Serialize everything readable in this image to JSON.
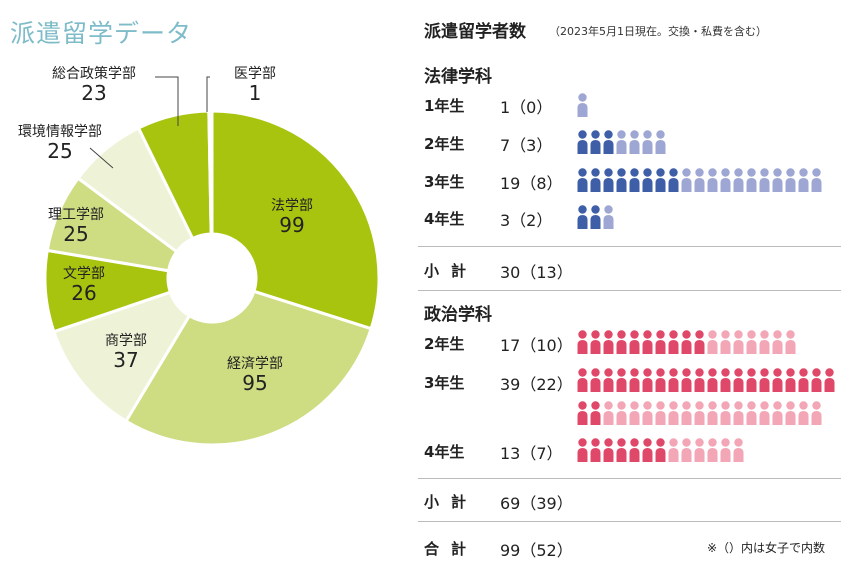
{
  "left": {
    "title": "派遣留学データ"
  },
  "chart_data": [
    {
      "type": "pie",
      "slices": [
        {
          "name": "法学部",
          "value": 99,
          "color": "#a8c40f"
        },
        {
          "name": "経済学部",
          "value": 95,
          "color": "#cedc82"
        },
        {
          "name": "商学部",
          "value": 37,
          "color": "#eef3d7"
        },
        {
          "name": "文学部",
          "value": 26,
          "color": "#a8c40f"
        },
        {
          "name": "理工学部",
          "value": 25,
          "color": "#cedc82"
        },
        {
          "name": "環境情報学部",
          "value": 25,
          "color": "#eef3d7"
        },
        {
          "name": "総合政策学部",
          "value": 23,
          "color": "#a8c40f"
        },
        {
          "name": "医学部",
          "value": 1,
          "color": "#cedc82"
        }
      ]
    },
    {
      "type": "table",
      "title": "派遣留学者数",
      "note": "（2023年5月1日現在。交換・私費を含む）",
      "departments": [
        {
          "name": "法律学科",
          "color": "#3e5ea7",
          "female_color": "#3e5ea7",
          "male_color": "#9ea7d3",
          "rows": [
            {
              "year": "1年生",
              "total": 1,
              "female": 0,
              "text": "1（0）"
            },
            {
              "year": "2年生",
              "total": 7,
              "female": 3,
              "text": "7（3）"
            },
            {
              "year": "3年生",
              "total": 19,
              "female": 8,
              "text": "19（8）"
            },
            {
              "year": "4年生",
              "total": 3,
              "female": 2,
              "text": "3（2）"
            }
          ],
          "subtotal_label": "小計",
          "subtotal_text": "30（13）"
        },
        {
          "name": "政治学科",
          "color": "#e0486a",
          "female_color": "#e0486a",
          "male_color": "#f2a6b6",
          "rows": [
            {
              "year": "2年生",
              "total": 17,
              "female": 10,
              "text": "17（10）"
            },
            {
              "year": "3年生",
              "total": 39,
              "female": 22,
              "text": "39（22）"
            },
            {
              "year": "4年生",
              "total": 13,
              "female": 7,
              "text": "13（7）"
            }
          ],
          "subtotal_label": "小計",
          "subtotal_text": "69（39）"
        }
      ],
      "total_label": "合計",
      "total_text": "99（52）",
      "footnote": "※（）内は女子で内数"
    }
  ]
}
